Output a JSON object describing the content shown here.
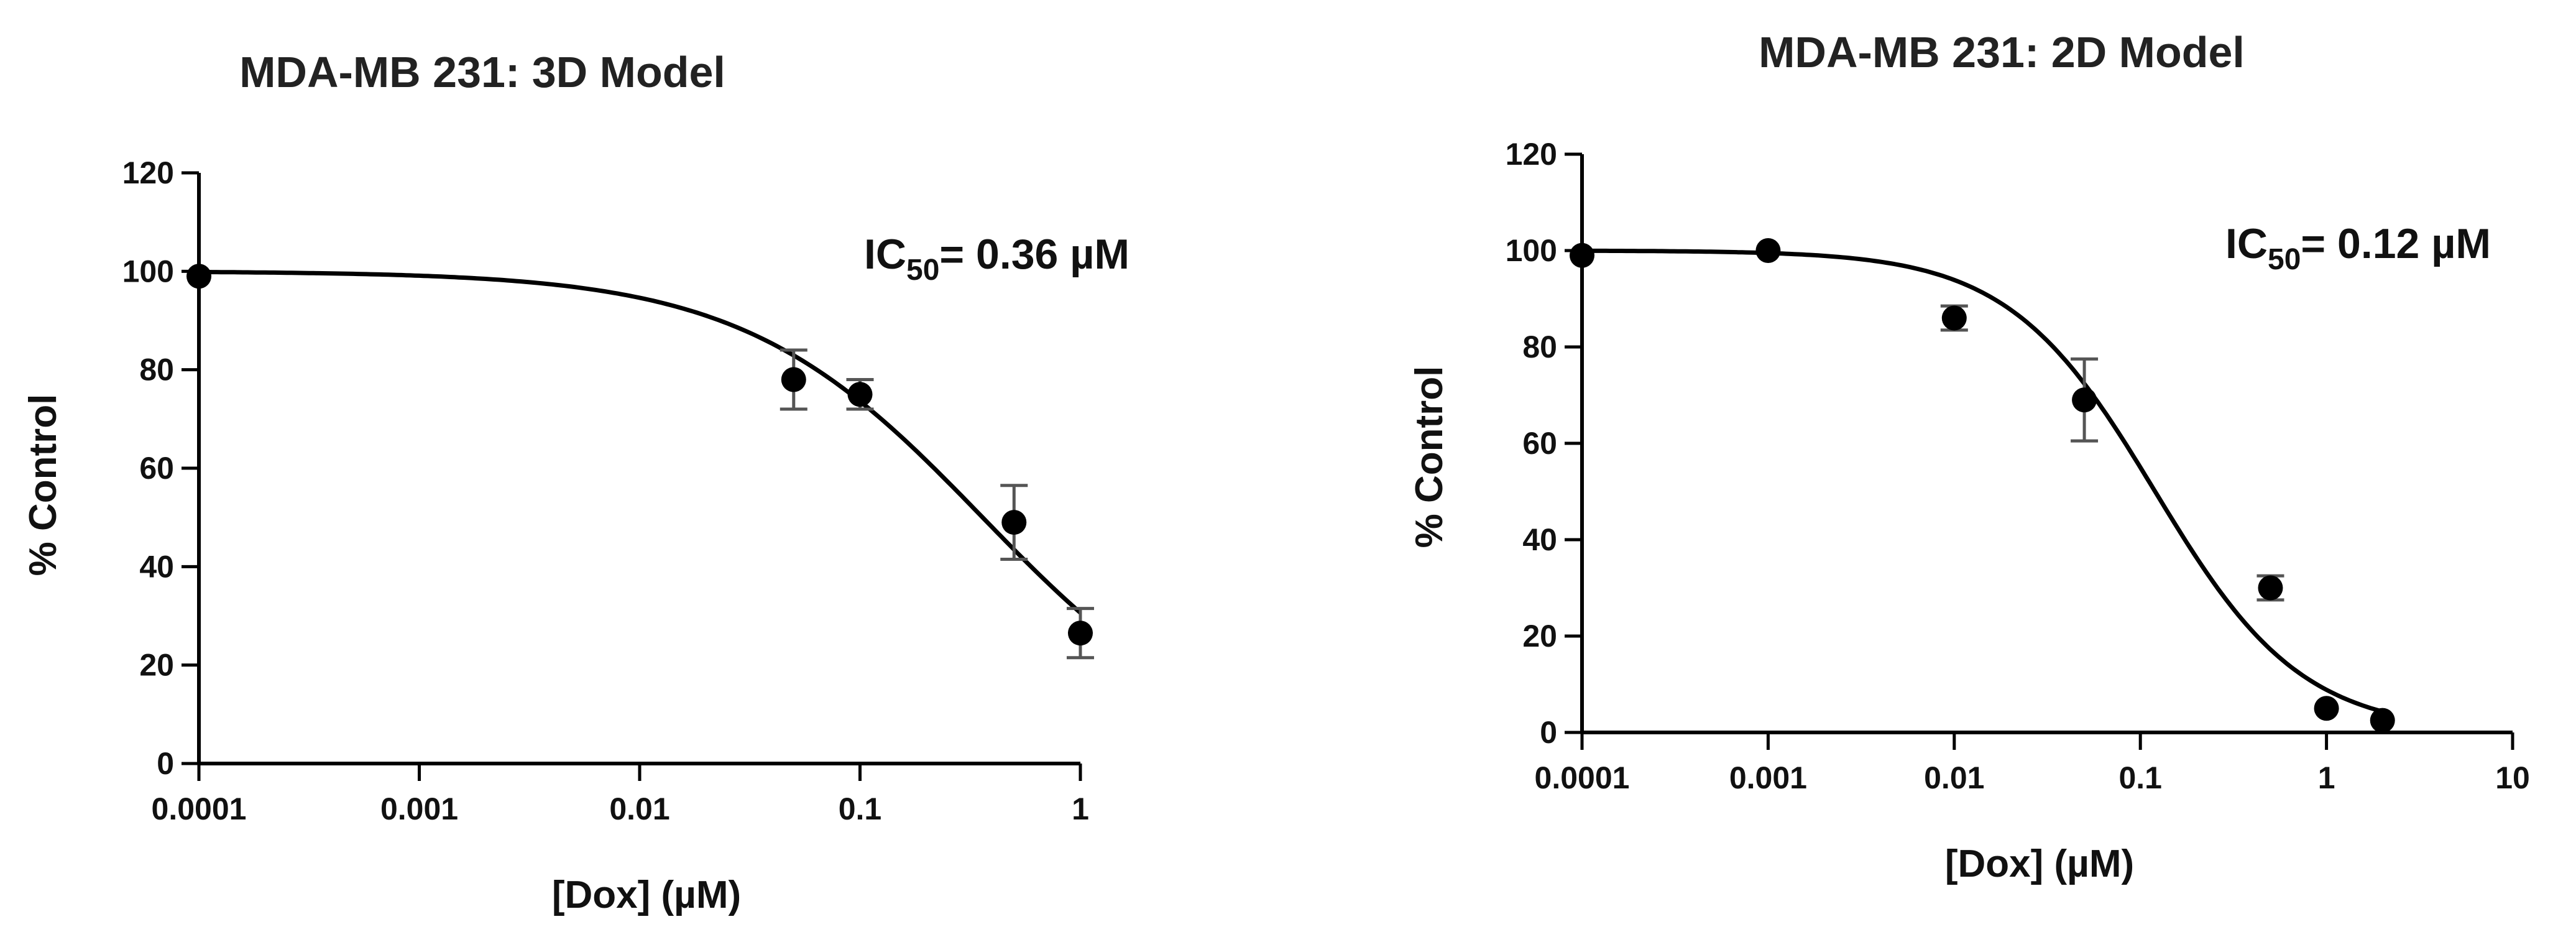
{
  "chart_data": [
    {
      "type": "scatter",
      "title": "MDA-MB 231: 3D Model",
      "xlabel": "[Dox] (µM)",
      "ylabel": "% Control",
      "xscale": "log",
      "xlim": [
        0.0001,
        1
      ],
      "ylim": [
        0,
        120
      ],
      "xticks": [
        0.0001,
        0.001,
        0.01,
        0.1,
        1
      ],
      "xtick_labels": [
        "0.0001",
        "0.001",
        "0.01",
        "0.1",
        "1"
      ],
      "yticks": [
        0,
        20,
        40,
        60,
        80,
        100,
        120
      ],
      "ytick_labels": [
        "0",
        "20",
        "40",
        "60",
        "80",
        "100",
        "120"
      ],
      "annotation": {
        "prefix": "IC",
        "sub": "50",
        "text": "= 0.36 µM"
      },
      "fit": {
        "top": 100,
        "bottom": 0,
        "ic50": 0.36,
        "hill": 0.8,
        "x_range": [
          0.0001,
          1
        ]
      },
      "points": [
        {
          "x": 0.0001,
          "y": 99,
          "err": 0
        },
        {
          "x": 0.05,
          "y": 78,
          "err": 6
        },
        {
          "x": 0.1,
          "y": 75,
          "err": 3
        },
        {
          "x": 0.5,
          "y": 49,
          "err": 7.5
        },
        {
          "x": 1,
          "y": 26.5,
          "err": 5
        }
      ]
    },
    {
      "type": "scatter",
      "title": "MDA-MB 231: 2D Model",
      "xlabel": "[Dox] (µM)",
      "ylabel": "% Control",
      "xscale": "log",
      "xlim": [
        0.0001,
        10
      ],
      "ylim": [
        0,
        120
      ],
      "xticks": [
        0.0001,
        0.001,
        0.01,
        0.1,
        1,
        10
      ],
      "xtick_labels": [
        "0.0001",
        "0.001",
        "0.01",
        "0.1",
        "1",
        "10"
      ],
      "yticks": [
        0,
        20,
        40,
        60,
        80,
        100,
        120
      ],
      "ytick_labels": [
        "0",
        "20",
        "40",
        "60",
        "80",
        "100",
        "120"
      ],
      "annotation": {
        "prefix": "IC",
        "sub": "50",
        "text": "= 0.12 µM"
      },
      "fit": {
        "top": 100,
        "bottom": 0,
        "ic50": 0.12,
        "hill": 1.1,
        "x_range": [
          0.0001,
          2
        ]
      },
      "points": [
        {
          "x": 0.0001,
          "y": 99,
          "err": 0
        },
        {
          "x": 0.001,
          "y": 100,
          "err": 0
        },
        {
          "x": 0.01,
          "y": 86,
          "err": 2.5
        },
        {
          "x": 0.05,
          "y": 69,
          "err": 8.5
        },
        {
          "x": 0.5,
          "y": 30,
          "err": 2.5
        },
        {
          "x": 1,
          "y": 5,
          "err": 0
        },
        {
          "x": 2,
          "y": 2.5,
          "err": 0
        }
      ]
    }
  ]
}
